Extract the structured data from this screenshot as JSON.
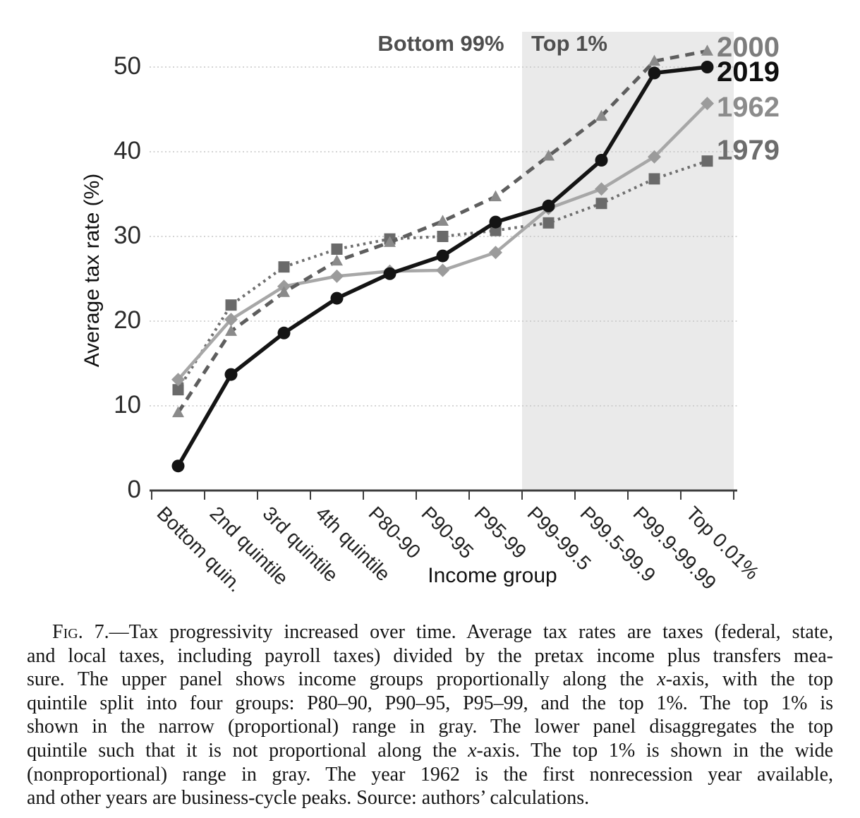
{
  "figure": {
    "caption_lines": [
      [
        {
          "t": "F"
        },
        {
          "t": "ig",
          "sc": true
        },
        {
          "t": ". 7.—Tax progressivity increased over time. Average tax rates are taxes (federal, state,"
        }
      ],
      [
        {
          "t": "and local taxes, including payroll taxes) divided by the pretax income plus transfers mea-"
        }
      ],
      [
        {
          "t": "sure. The upper panel shows income groups proportionally along the "
        },
        {
          "t": "x",
          "it": true
        },
        {
          "t": "-axis, with the top"
        }
      ],
      [
        {
          "t": "quintile split into four groups: P80–90, P90–95, P95–99, and the top 1%. The top 1% is"
        }
      ],
      [
        {
          "t": "shown in the narrow (proportional) range in gray. The lower panel disaggregates the top"
        }
      ],
      [
        {
          "t": "quintile such that it is not proportional along the "
        },
        {
          "t": "x",
          "it": true
        },
        {
          "t": "-axis. The top 1% is shown in the wide"
        }
      ],
      [
        {
          "t": "(nonproportional) range in gray. The year 1962 is the first nonrecession year available,"
        }
      ],
      [
        {
          "t": "and other years are business-cycle peaks. Source: authors’ calculations."
        }
      ]
    ]
  },
  "chart_data": {
    "type": "line",
    "title": "",
    "xlabel": "Income group",
    "ylabel": "Average tax rate (%)",
    "ylim": [
      0,
      52
    ],
    "yticks": [
      0,
      10,
      20,
      30,
      40,
      50
    ],
    "grid": "horizontal-dotted",
    "region_labels": {
      "bottom99": "Bottom 99%",
      "top1": "Top 1%"
    },
    "band": {
      "label": "Top 1%",
      "from_tick": 7,
      "to_tick": 11,
      "color": "#eaeaea"
    },
    "categories": [
      "Bottom quin.",
      "2nd quintile",
      "3rd quintile",
      "4th quintile",
      "P80-90",
      "P90-95",
      "P95-99",
      "P99-99.5",
      "P99.5-99.9",
      "P99.9-99.99",
      "Top 0.01%"
    ],
    "legend_position": "right-of-last-point",
    "series": [
      {
        "name": "2000",
        "line": "dashed",
        "dash": "13 9",
        "width": 5,
        "marker": "triangle",
        "color": "#5e5e5e",
        "marker_color": "#8a8a8a",
        "label_color": "#7d7d7d",
        "label_dy": -5,
        "z": 3,
        "values": [
          9.2,
          18.8,
          23.4,
          27.1,
          29.3,
          31.8,
          34.7,
          39.5,
          44.2,
          50.7,
          51.9
        ]
      },
      {
        "name": "2019",
        "line": "solid",
        "dash": "",
        "width": 5.5,
        "marker": "circle",
        "color": "#141414",
        "marker_color": "#141414",
        "label_color": "#0f0f0f",
        "label_dy": 7,
        "z": 4,
        "values": [
          2.9,
          13.7,
          18.6,
          22.7,
          25.6,
          27.7,
          31.7,
          33.6,
          39.0,
          49.3,
          50.0
        ]
      },
      {
        "name": "1962",
        "line": "solid",
        "dash": "",
        "width": 4.5,
        "marker": "diamond",
        "color": "#a7a7a7",
        "marker_color": "#9b9b9b",
        "label_color": "#8c8c8c",
        "label_dy": 5,
        "z": 2,
        "values": [
          13.1,
          20.2,
          24.1,
          25.3,
          25.9,
          26.0,
          28.1,
          33.3,
          35.6,
          39.4,
          45.7
        ]
      },
      {
        "name": "1979",
        "line": "dotted",
        "dash": "3.5 5.5",
        "width": 4,
        "marker": "square",
        "color": "#6f6f6f",
        "marker_color": "#6a6a6a",
        "label_color": "#6d6d6d",
        "label_dy": -15,
        "z": 1,
        "values": [
          11.9,
          21.9,
          26.4,
          28.5,
          29.7,
          30.0,
          30.7,
          31.6,
          33.9,
          36.8,
          38.9
        ]
      }
    ]
  }
}
